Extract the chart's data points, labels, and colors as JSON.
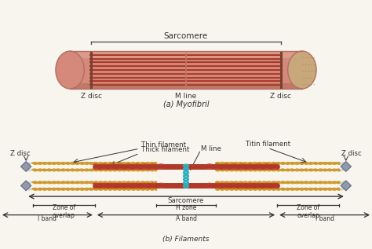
{
  "bg_color": "#f8f4ee",
  "sarcomere_label": "Sarcomere",
  "myofibril_label": "(a) Myofibril",
  "filaments_label": "(b) Filaments",
  "z_disc_label": "Z disc",
  "m_line_label": "M line",
  "thin_filament_label": "Thin filament",
  "thick_filament_label": "Thick filament",
  "m_line_label2": "M line",
  "titin_label": "Titin filament",
  "sarcomere_label2": "Sarcomere",
  "zone_overlap_label": "Zone of\noverlap",
  "h_zone_label": "H zone",
  "a_band_label": "A band",
  "i_band_label": "I band",
  "cylinder_body": "#d4897a",
  "cylinder_light": "#e0a898",
  "cylinder_stripe": "#a03020",
  "cylinder_end": "#c8a87a",
  "cylinder_edge": "#b07060",
  "myosin_color": "#b03828",
  "myosin_head_color": "#c04030",
  "actin_color": "#d4a030",
  "actin_light": "#e8c060",
  "titin_col": "#d0d0d0",
  "z_disc_col": "#909aaa",
  "m_line_col": "#30b0c0",
  "label_color": "#333333"
}
